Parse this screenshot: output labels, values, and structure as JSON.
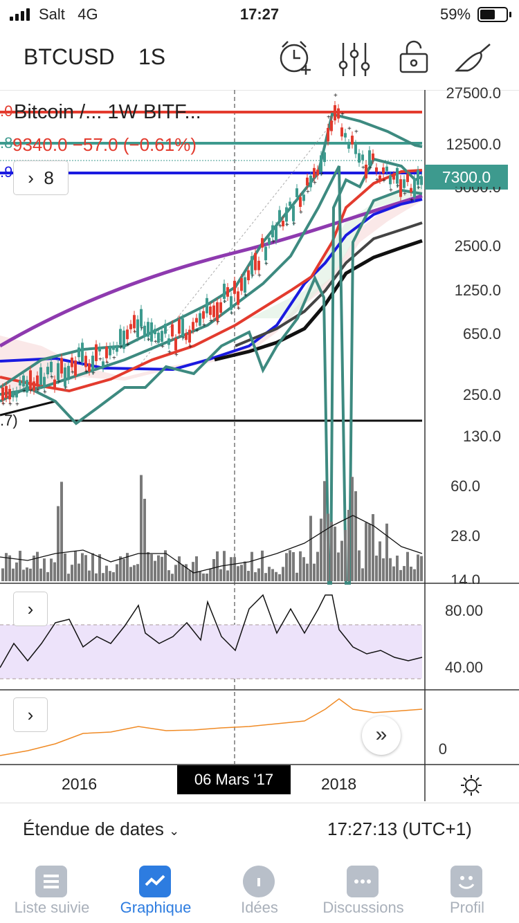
{
  "status_bar": {
    "carrier": "Salt",
    "network": "4G",
    "time": "17:27",
    "battery": "59%",
    "battery_level": 0.59
  },
  "toolbar": {
    "symbol": "BTCUSD",
    "interval": "1S",
    "icons": [
      "alarm-add-icon",
      "indicators-icon",
      "lock-icon",
      "drawing-tool-icon"
    ]
  },
  "chart": {
    "legend": {
      "title": "Bitcoin /...  1W  BITF...",
      "price_line": "9340.0  −57.0 (−0.61%)",
      "edge_left_1": ".0",
      "edge_left_2": ".8",
      "edge_left_3": ".9",
      "edge_left_4": ".7)",
      "indicators_button": "8"
    },
    "price_axis": [
      "27500.0",
      "12500.0",
      "2500.0",
      "1250.0",
      "650.0",
      "250.0",
      "130.0",
      "60.0",
      "28.0",
      "14.0"
    ],
    "price_axis_partial": "5000.0",
    "current_price_tag": "7300.0",
    "rsi_axis": [
      "80.00",
      "40.00"
    ],
    "third_pane_axis": "0",
    "time_axis": [
      "2016",
      "2018"
    ],
    "crosshair_date": "06 Mars '17",
    "colors": {
      "teal": "#3d9a8e",
      "red": "#e33b2e",
      "blue": "#1a1ae0",
      "purple": "#8e3aaf",
      "black": "#111111",
      "rsi_band": "#ede3fa",
      "orange": "#f08a24",
      "volume": "#7a7a7a"
    }
  },
  "range_bar": {
    "label": "Étendue de dates",
    "clock": "17:27:13 (UTC+1)"
  },
  "tabs": [
    {
      "label": "Liste suivie",
      "icon": "watchlist-icon",
      "active": false
    },
    {
      "label": "Graphique",
      "icon": "chart-icon",
      "active": true
    },
    {
      "label": "Idées",
      "icon": "ideas-icon",
      "active": false
    },
    {
      "label": "Discussions",
      "icon": "chat-icon",
      "active": false
    },
    {
      "label": "Profil",
      "icon": "profile-icon",
      "active": false
    }
  ]
}
